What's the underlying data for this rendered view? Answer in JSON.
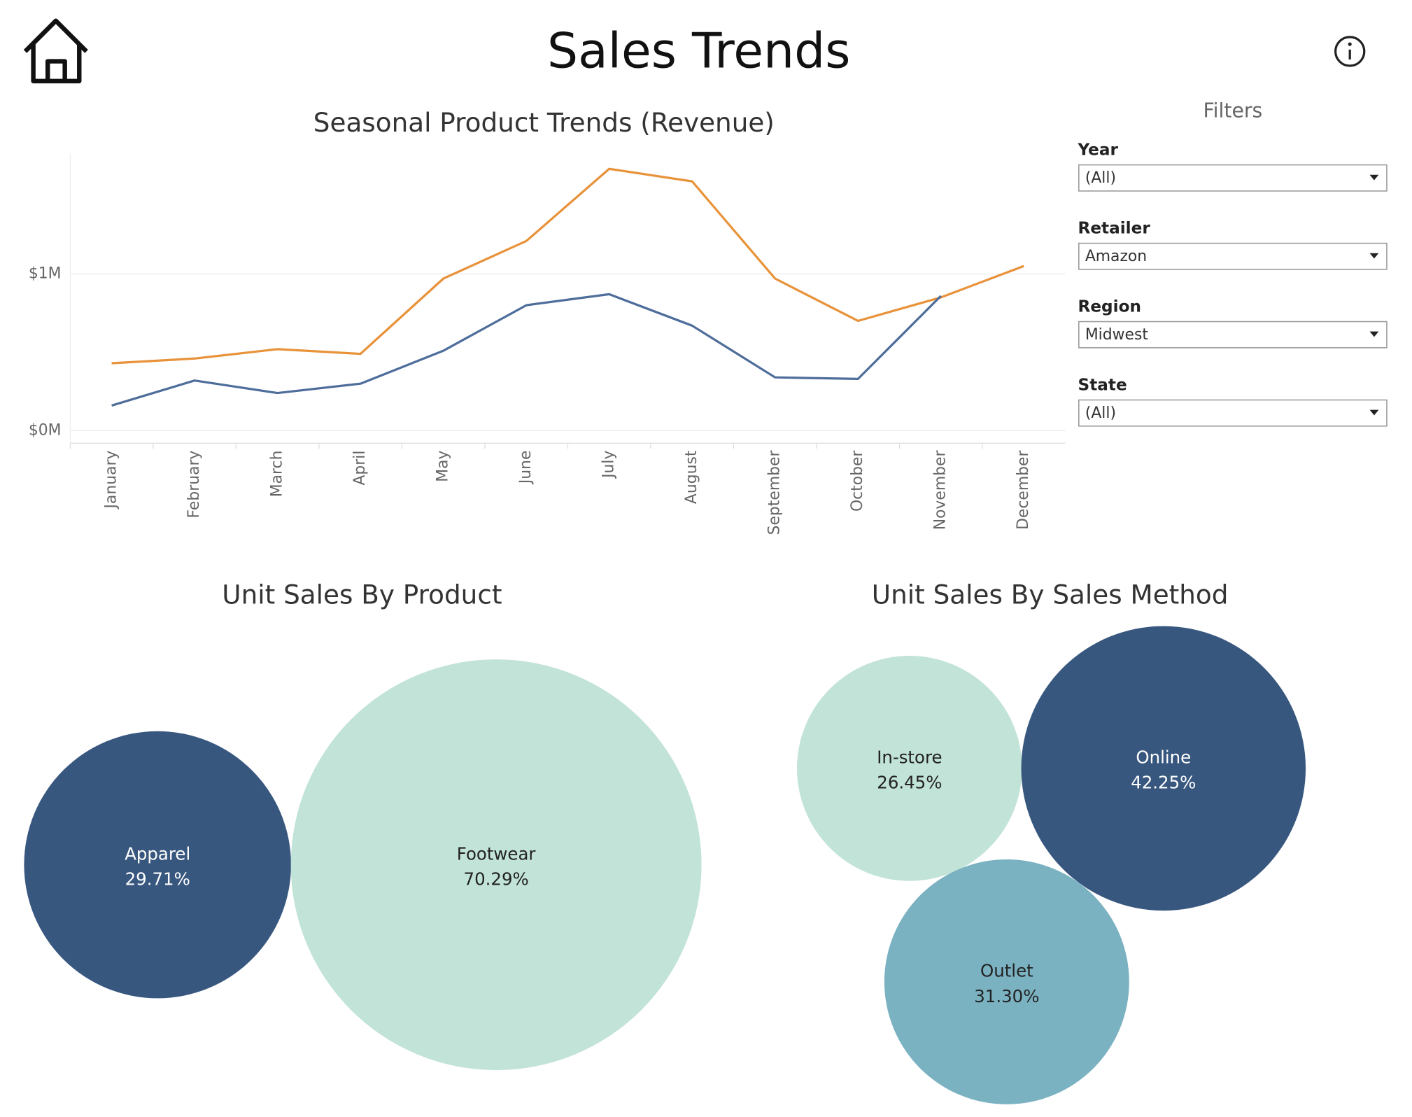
{
  "title": "Sales Trends",
  "filters": {
    "title": "Filters",
    "items": [
      {
        "label": "Year",
        "value": "(All)"
      },
      {
        "label": "Retailer",
        "value": "Amazon"
      },
      {
        "label": "Region",
        "value": "Midwest"
      },
      {
        "label": "State",
        "value": "(All)"
      }
    ]
  },
  "chart_data": [
    {
      "type": "line",
      "title": "Seasonal Product Trends (Revenue)",
      "categories": [
        "January",
        "February",
        "March",
        "April",
        "May",
        "June",
        "July",
        "August",
        "September",
        "October",
        "November",
        "December"
      ],
      "series": [
        {
          "color": "#e8923a",
          "values": [
            430000,
            460000,
            520000,
            490000,
            970000,
            1210000,
            1670000,
            1590000,
            970000,
            700000,
            850000,
            1050000
          ]
        },
        {
          "color": "#4e6d9b",
          "values": [
            160000,
            320000,
            240000,
            300000,
            510000,
            800000,
            870000,
            670000,
            340000,
            330000,
            860000,
            null
          ]
        }
      ],
      "ylim": [
        -80000,
        1770000
      ],
      "yticks": [
        {
          "value": 0,
          "label": "$0M"
        },
        {
          "value": 1000000,
          "label": "$1M"
        }
      ],
      "grid": true
    },
    {
      "type": "bubble",
      "title": "Unit Sales By Product",
      "categories": [
        "Apparel",
        "Footwear"
      ],
      "values": [
        29.71,
        70.29
      ],
      "value_labels": [
        "29.71%",
        "70.29%"
      ],
      "colors": [
        "#38577f",
        "#c2e3d8"
      ]
    },
    {
      "type": "bubble",
      "title": "Unit Sales By Sales Method",
      "categories": [
        "In-store",
        "Online",
        "Outlet"
      ],
      "values": [
        26.45,
        42.25,
        31.3
      ],
      "value_labels": [
        "26.45%",
        "42.25%",
        "31.30%"
      ],
      "colors": [
        "#c2e3d8",
        "#38577f",
        "#7bb2c2"
      ]
    }
  ]
}
